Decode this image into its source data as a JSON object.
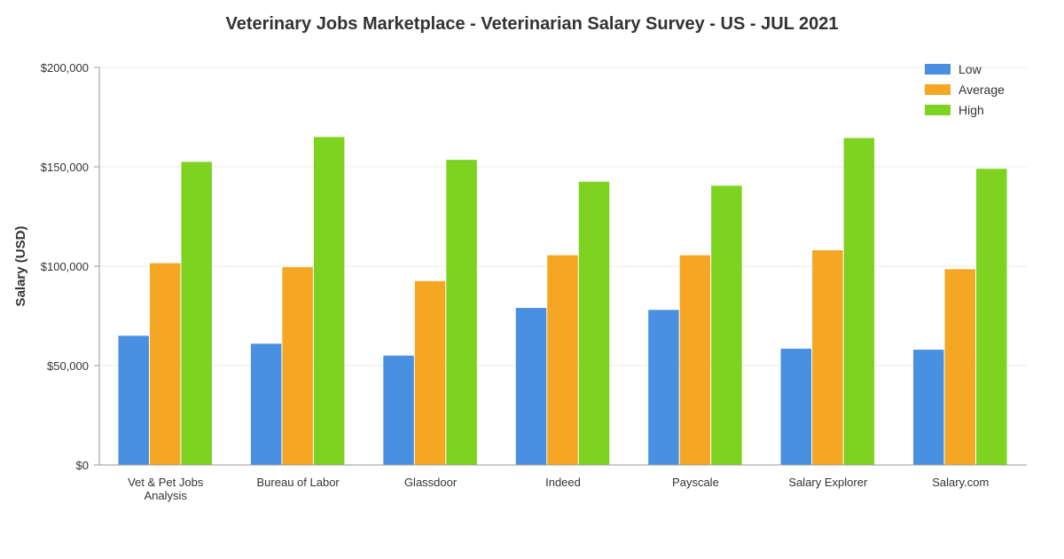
{
  "chart_data": {
    "type": "bar",
    "title": "Veterinary Jobs Marketplace - Veterinarian Salary Survey - US - JUL 2021",
    "xlabel": "",
    "ylabel": "Salary (USD)",
    "ylim": [
      0,
      200000
    ],
    "yticks": [
      0,
      50000,
      100000,
      150000,
      200000
    ],
    "ytick_labels": [
      "$0",
      "$50,000",
      "$100,000",
      "$150,000",
      "$200,000"
    ],
    "categories": [
      [
        "Vet & Pet Jobs",
        "Analysis"
      ],
      [
        "Bureau of Labor"
      ],
      [
        "Glassdoor"
      ],
      [
        "Indeed"
      ],
      [
        "Payscale"
      ],
      [
        "Salary Explorer"
      ],
      [
        "Salary.com"
      ]
    ],
    "series": [
      {
        "name": "Low",
        "color": "#4a90e2",
        "values": [
          65000,
          61000,
          55000,
          79000,
          78000,
          58500,
          58000
        ]
      },
      {
        "name": "Average",
        "color": "#f5a623",
        "values": [
          101500,
          99500,
          92500,
          105500,
          105500,
          108000,
          98500
        ]
      },
      {
        "name": "High",
        "color": "#7ed321",
        "values": [
          152500,
          165000,
          153500,
          142500,
          140500,
          164500,
          149000
        ]
      }
    ],
    "grid": true,
    "legend_position": "top-right"
  }
}
